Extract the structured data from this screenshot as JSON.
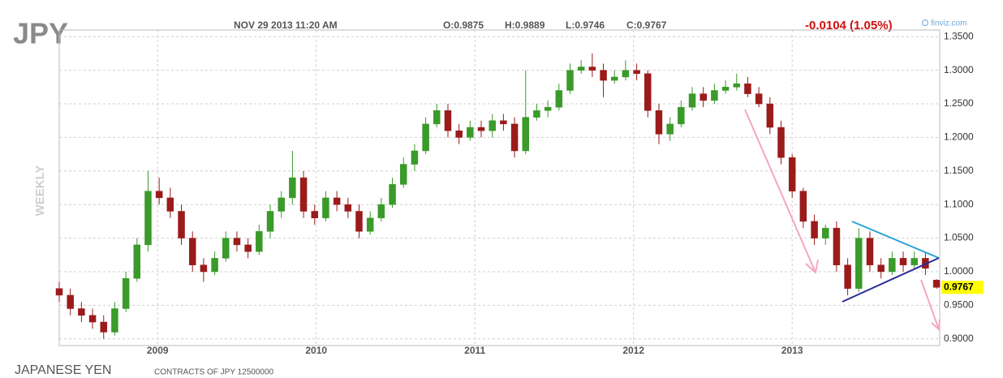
{
  "header": {
    "symbol": "JPY",
    "datetime": "NOV 29 2013 11:20 AM",
    "open": "O:0.9875",
    "high": "H:0.9889",
    "low": "L:0.9746",
    "close": "C:0.9767",
    "change": "-0.0104 (1.05%)",
    "source": "finviz.com",
    "period": "WEEKLY",
    "name": "JAPANESE YEN",
    "contracts": "CONTRACTS OF JPY 12500000"
  },
  "chart_data": {
    "type": "candlestick",
    "up_color": "#3a9a2a",
    "down_color": "#9b1b1b",
    "grid": true,
    "xlim": [
      2008.38,
      2013.93
    ],
    "xticks": [
      2009,
      2010,
      2011,
      2012,
      2013
    ],
    "ylim": [
      0.89,
      1.36
    ],
    "yticks": [
      {
        "value": 0.9,
        "label": "0.9000"
      },
      {
        "value": 0.95,
        "label": "0.9500"
      },
      {
        "value": 1.0,
        "label": "1.0000"
      },
      {
        "value": 1.05,
        "label": "1.0500"
      },
      {
        "value": 1.1,
        "label": "1.1000"
      },
      {
        "value": 1.15,
        "label": "1.1500"
      },
      {
        "value": 1.2,
        "label": "1.2000"
      },
      {
        "value": 1.25,
        "label": "1.2500"
      },
      {
        "value": 1.3,
        "label": "1.3000"
      },
      {
        "value": 1.35,
        "label": "1.3500"
      }
    ],
    "x": [
      2008.38,
      2008.45,
      2008.52,
      2008.59,
      2008.66,
      2008.73,
      2008.8,
      2008.87,
      2008.94,
      2009.01,
      2009.08,
      2009.15,
      2009.22,
      2009.29,
      2009.36,
      2009.43,
      2009.5,
      2009.57,
      2009.64,
      2009.71,
      2009.78,
      2009.85,
      2009.92,
      2009.99,
      2010.06,
      2010.13,
      2010.2,
      2010.27,
      2010.34,
      2010.41,
      2010.48,
      2010.55,
      2010.62,
      2010.69,
      2010.76,
      2010.83,
      2010.9,
      2010.97,
      2011.04,
      2011.11,
      2011.18,
      2011.25,
      2011.32,
      2011.39,
      2011.46,
      2011.53,
      2011.6,
      2011.67,
      2011.74,
      2011.81,
      2011.88,
      2011.95,
      2012.02,
      2012.09,
      2012.16,
      2012.23,
      2012.3,
      2012.37,
      2012.44,
      2012.51,
      2012.58,
      2012.65,
      2012.72,
      2012.79,
      2012.86,
      2012.93,
      2013.0,
      2013.07,
      2013.14,
      2013.21,
      2013.28,
      2013.35,
      2013.42,
      2013.49,
      2013.56,
      2013.63,
      2013.7,
      2013.77,
      2013.84,
      2013.91
    ],
    "open": [
      0.975,
      0.965,
      0.945,
      0.935,
      0.925,
      0.91,
      0.945,
      0.99,
      1.04,
      1.12,
      1.11,
      1.09,
      1.05,
      1.01,
      1.0,
      1.02,
      1.05,
      1.04,
      1.03,
      1.06,
      1.09,
      1.11,
      1.14,
      1.09,
      1.08,
      1.11,
      1.1,
      1.09,
      1.06,
      1.08,
      1.1,
      1.13,
      1.16,
      1.18,
      1.22,
      1.24,
      1.21,
      1.2,
      1.215,
      1.21,
      1.225,
      1.22,
      1.18,
      1.23,
      1.24,
      1.245,
      1.27,
      1.3,
      1.305,
      1.3,
      1.285,
      1.29,
      1.3,
      1.295,
      1.24,
      1.205,
      1.22,
      1.245,
      1.265,
      1.255,
      1.27,
      1.275,
      1.28,
      1.265,
      1.25,
      1.215,
      1.17,
      1.12,
      1.075,
      1.05,
      1.065,
      1.01,
      0.975,
      1.05,
      1.01,
      1.0,
      1.02,
      1.01,
      1.02,
      0.9875
    ],
    "high": [
      0.985,
      0.975,
      0.955,
      0.945,
      0.935,
      0.955,
      1.0,
      1.05,
      1.15,
      1.14,
      1.125,
      1.1,
      1.06,
      1.02,
      1.03,
      1.06,
      1.06,
      1.05,
      1.07,
      1.1,
      1.12,
      1.18,
      1.15,
      1.1,
      1.12,
      1.12,
      1.11,
      1.1,
      1.09,
      1.11,
      1.14,
      1.17,
      1.19,
      1.23,
      1.25,
      1.25,
      1.22,
      1.225,
      1.225,
      1.235,
      1.235,
      1.23,
      1.3,
      1.25,
      1.255,
      1.28,
      1.31,
      1.315,
      1.325,
      1.31,
      1.3,
      1.315,
      1.31,
      1.3,
      1.25,
      1.23,
      1.255,
      1.275,
      1.275,
      1.28,
      1.285,
      1.295,
      1.29,
      1.275,
      1.26,
      1.225,
      1.175,
      1.125,
      1.085,
      1.07,
      1.075,
      1.02,
      1.065,
      1.06,
      1.02,
      1.03,
      1.03,
      1.03,
      1.03,
      0.9889
    ],
    "low": [
      0.955,
      0.935,
      0.925,
      0.915,
      0.9,
      0.905,
      0.94,
      0.985,
      1.03,
      1.1,
      1.08,
      1.04,
      1.0,
      0.985,
      0.995,
      1.015,
      1.03,
      1.02,
      1.025,
      1.05,
      1.08,
      1.1,
      1.08,
      1.07,
      1.075,
      1.09,
      1.08,
      1.05,
      1.055,
      1.075,
      1.095,
      1.125,
      1.15,
      1.175,
      1.215,
      1.2,
      1.19,
      1.195,
      1.2,
      1.2,
      1.21,
      1.17,
      1.175,
      1.225,
      1.23,
      1.24,
      1.265,
      1.295,
      1.29,
      1.26,
      1.28,
      1.285,
      1.285,
      1.23,
      1.19,
      1.195,
      1.215,
      1.24,
      1.245,
      1.25,
      1.265,
      1.27,
      1.26,
      1.245,
      1.205,
      1.16,
      1.11,
      1.065,
      1.04,
      1.04,
      1.0,
      0.965,
      0.97,
      1.0,
      0.99,
      0.995,
      1.0,
      1.005,
      0.995,
      0.9746
    ],
    "close": [
      0.965,
      0.945,
      0.935,
      0.925,
      0.91,
      0.945,
      0.99,
      1.04,
      1.12,
      1.11,
      1.09,
      1.05,
      1.01,
      1.0,
      1.02,
      1.05,
      1.04,
      1.03,
      1.06,
      1.09,
      1.11,
      1.14,
      1.09,
      1.08,
      1.11,
      1.1,
      1.09,
      1.06,
      1.08,
      1.1,
      1.13,
      1.16,
      1.18,
      1.22,
      1.24,
      1.21,
      1.2,
      1.215,
      1.21,
      1.225,
      1.22,
      1.18,
      1.23,
      1.24,
      1.245,
      1.27,
      1.3,
      1.305,
      1.3,
      1.285,
      1.29,
      1.3,
      1.295,
      1.24,
      1.205,
      1.22,
      1.245,
      1.265,
      1.255,
      1.27,
      1.275,
      1.28,
      1.265,
      1.25,
      1.215,
      1.17,
      1.12,
      1.075,
      1.05,
      1.065,
      1.01,
      0.975,
      1.05,
      1.01,
      1.0,
      1.02,
      1.01,
      1.02,
      1.005,
      0.9767
    ]
  }
}
